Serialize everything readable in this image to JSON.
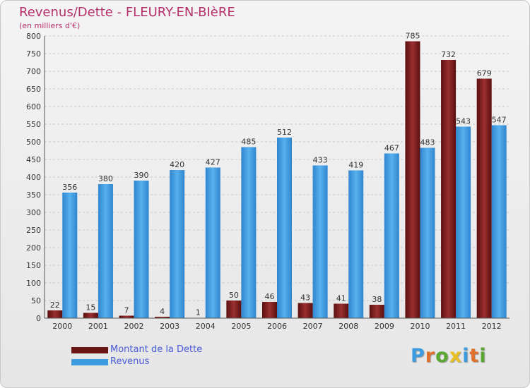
{
  "header": {
    "title": "Revenus/Dette - FLEURY-EN-BIèRE",
    "subtitle": "(en milliers d'€)"
  },
  "chart_data": {
    "type": "bar",
    "title": "Revenus/Dette - FLEURY-EN-BIèRE",
    "ylabel": "(en milliers d'€)",
    "ylim": [
      0,
      800
    ],
    "yticks": [
      0,
      50,
      100,
      150,
      200,
      250,
      300,
      350,
      400,
      450,
      500,
      550,
      600,
      650,
      700,
      750,
      800
    ],
    "grid": true,
    "legend_position": "bottom-left",
    "categories": [
      "2000",
      "2001",
      "2002",
      "2003",
      "2004",
      "2005",
      "2006",
      "2007",
      "2008",
      "2009",
      "2010",
      "2011",
      "2012"
    ],
    "series": [
      {
        "name": "Montant de la Dette",
        "color": "#7a1a1a",
        "values": [
          22,
          15,
          7,
          4,
          1,
          50,
          46,
          43,
          41,
          38,
          785,
          732,
          679
        ]
      },
      {
        "name": "Revenus",
        "color": "#3d9be0",
        "values": [
          356,
          380,
          390,
          420,
          427,
          485,
          512,
          433,
          419,
          467,
          483,
          543,
          547
        ]
      }
    ]
  },
  "logo": {
    "text": "Proxiti",
    "colors": [
      "#3d9be0",
      "#e0702a",
      "#5aa832",
      "#e8c020",
      "#3d9be0",
      "#e0702a",
      "#5aa832"
    ]
  }
}
